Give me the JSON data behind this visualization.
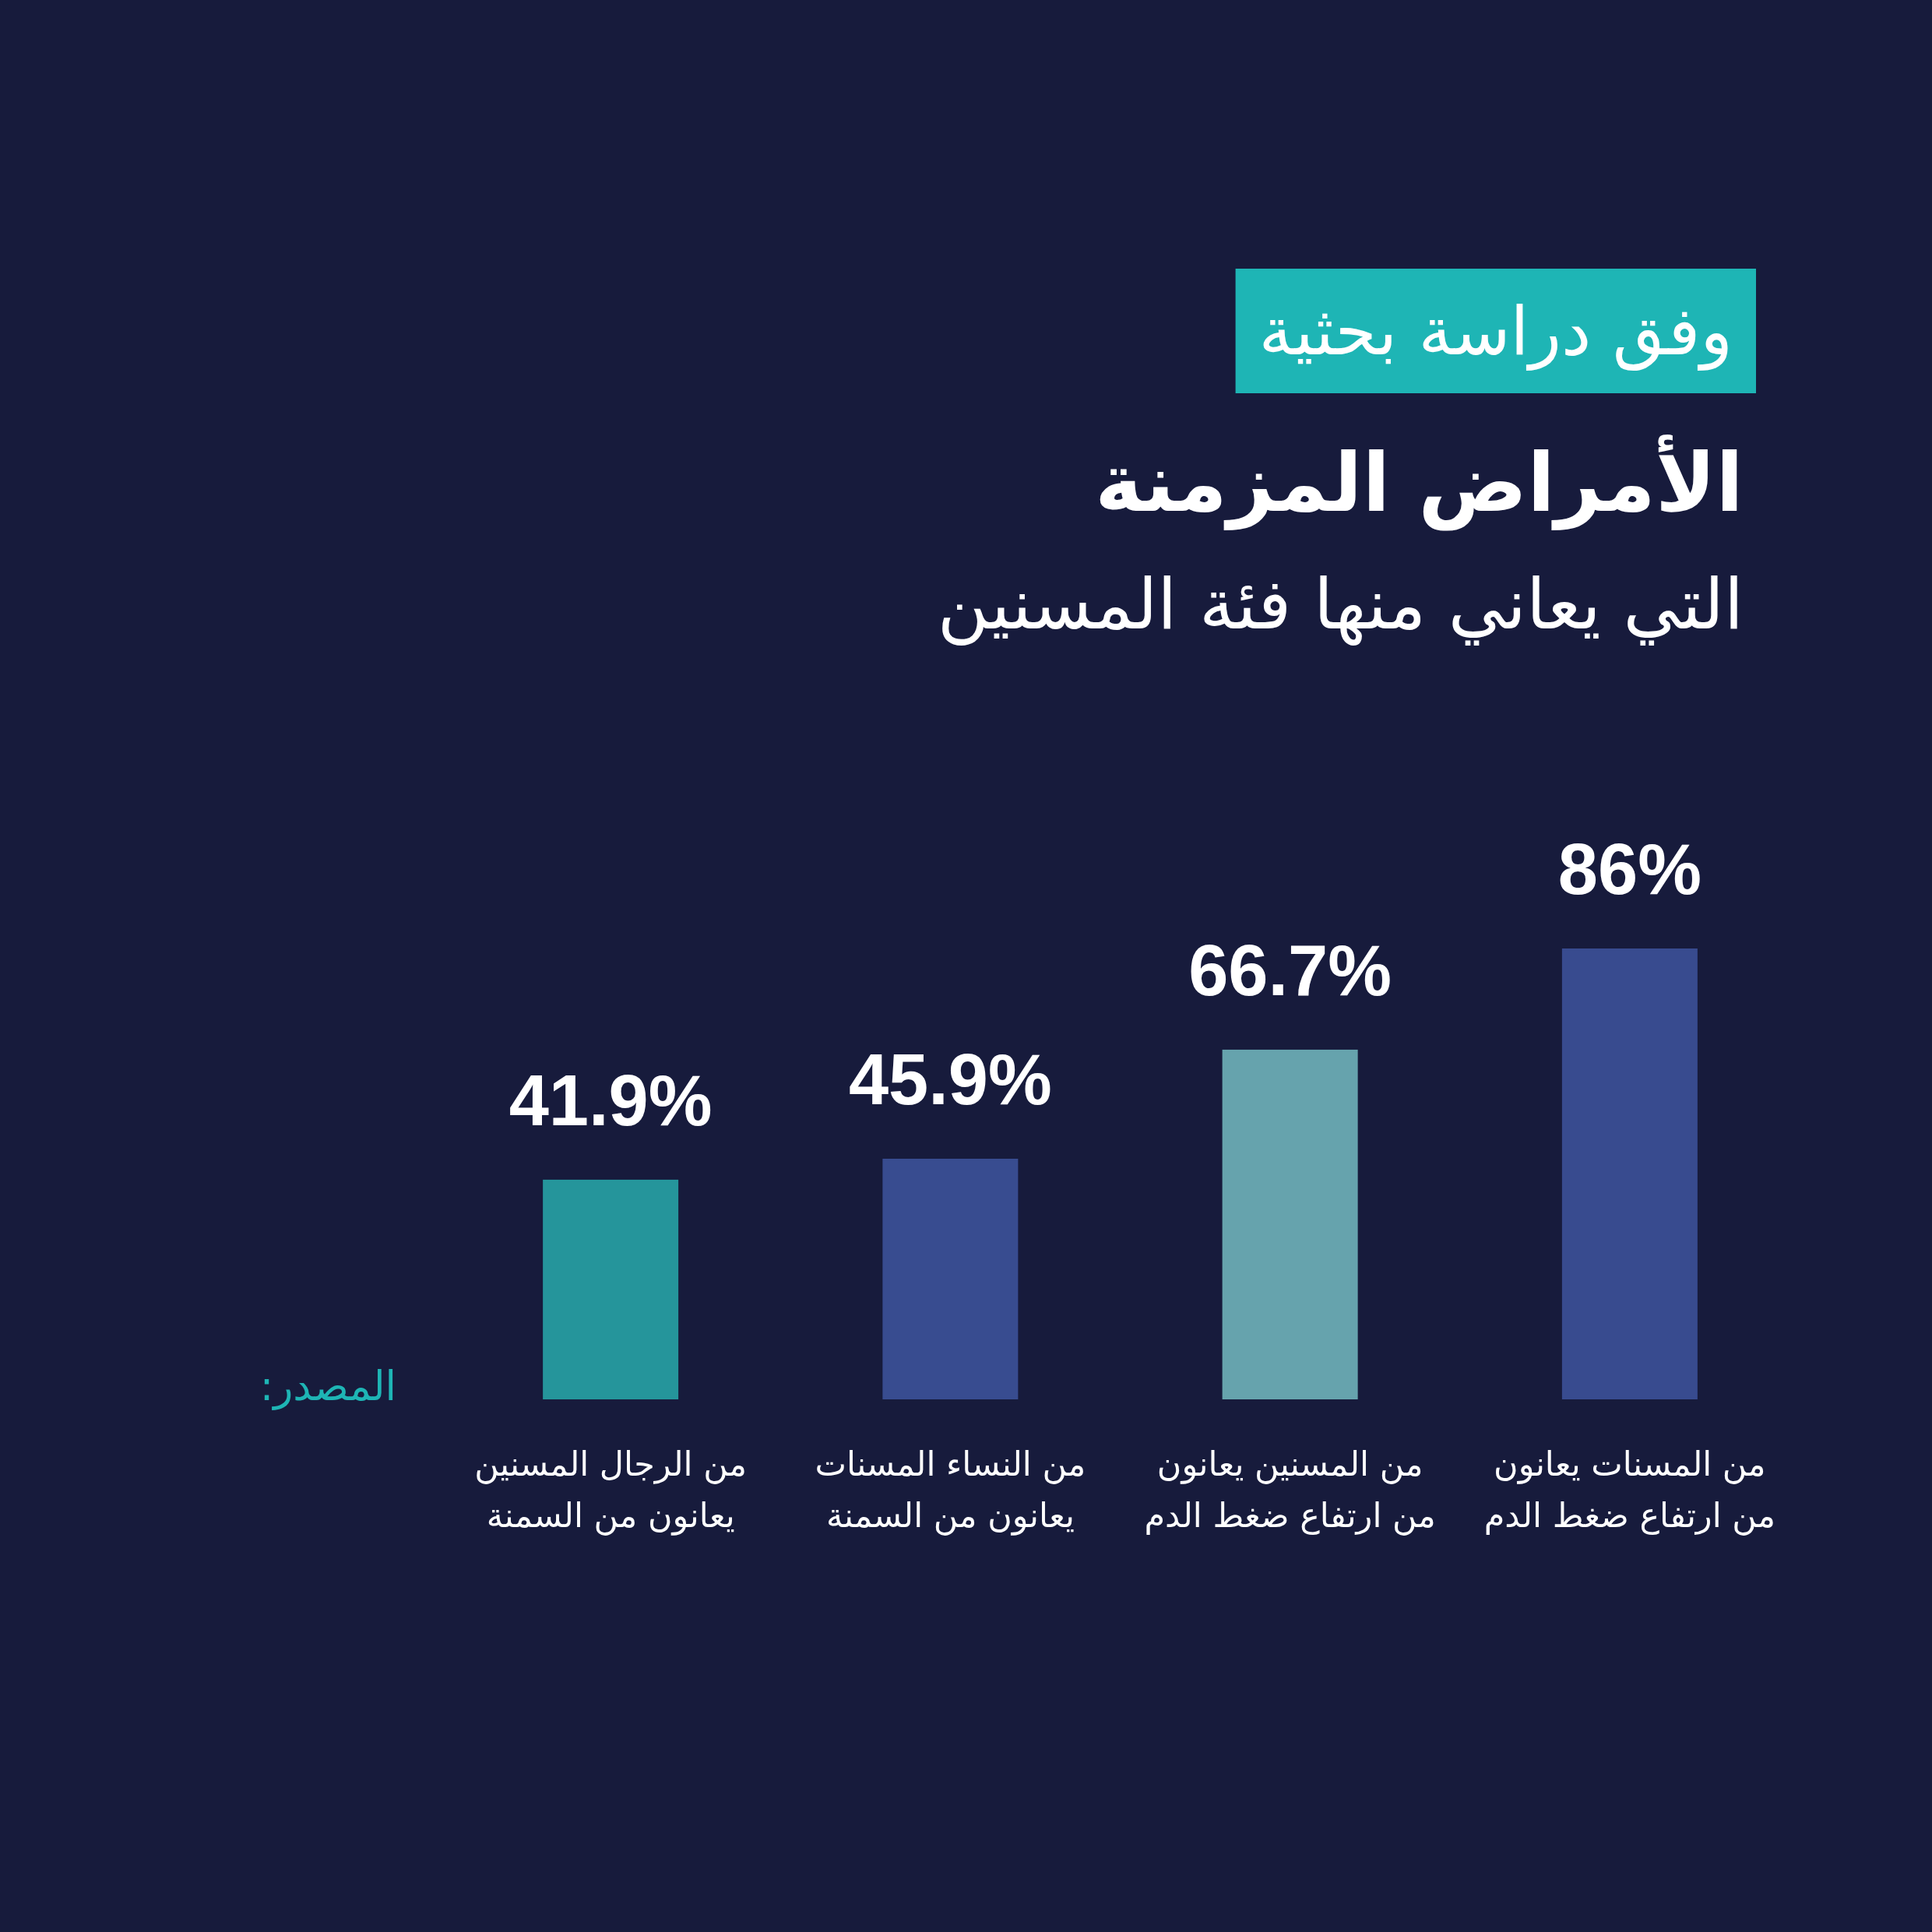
{
  "chart_data": {
    "type": "bar",
    "title": "الأمراض المزمنة",
    "subtitle": "التي يعاني منها فئة المسنين",
    "annotations": [
      "وفق دراسة بحثية",
      "المصدر:"
    ],
    "categories": [
      "من الرجال المسنين\nيعانون من السمنة",
      "من النساء المسنات\nيعانون من السمنة",
      "من المسنين يعانون\nمن ارتفاع ضغط الدم",
      "من المسنات يعانون\nمن ارتفاع ضغط الدم"
    ],
    "values": [
      41.9,
      45.9,
      66.7,
      86
    ],
    "colors": [
      "#25959b",
      "#384c90",
      "#66a3ad",
      "#384b8f"
    ],
    "value_labels": [
      "41.9%",
      "45.9%",
      "66.7%",
      "86%"
    ]
  }
}
